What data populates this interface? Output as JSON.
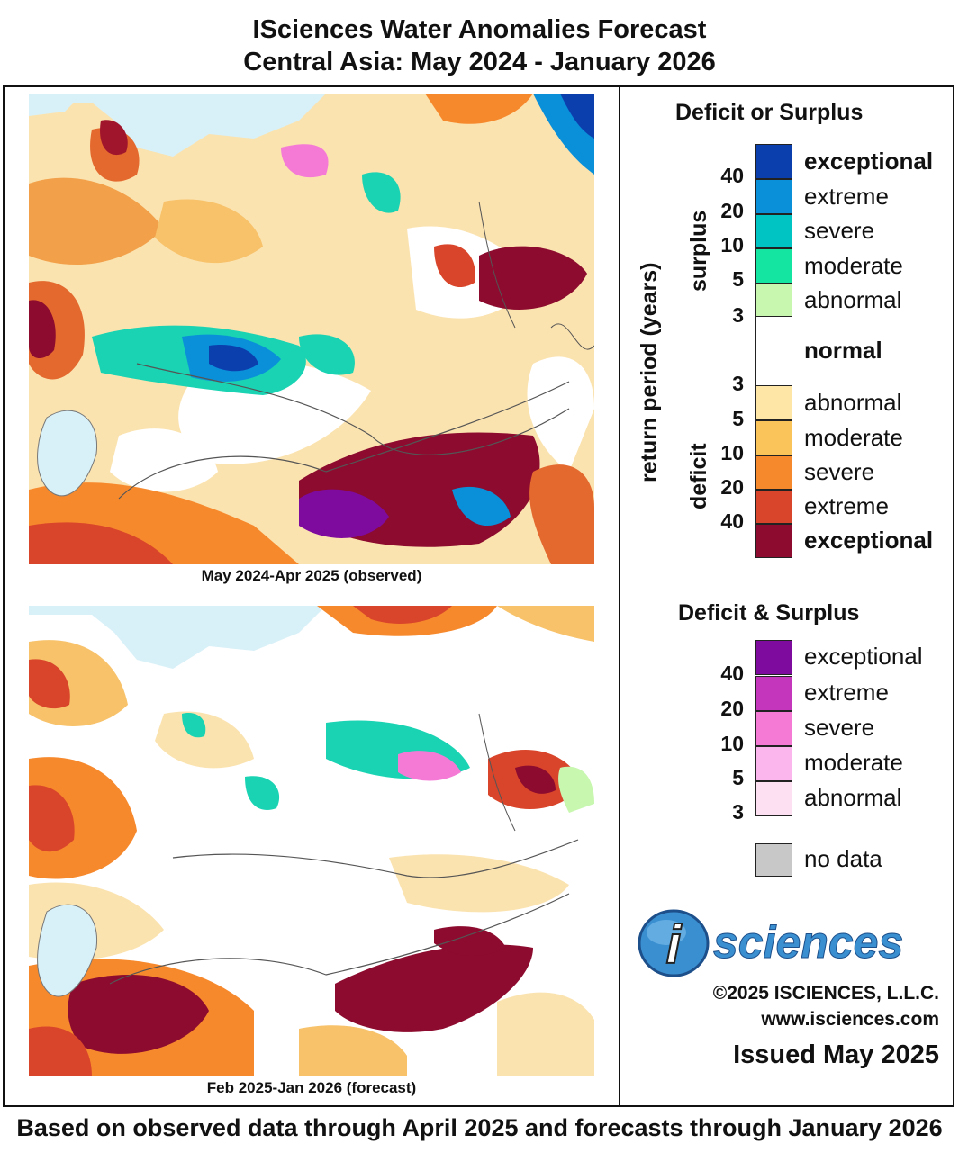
{
  "header": {
    "title_line1": "ISciences Water Anomalies Forecast",
    "title_line2": "Central Asia: May 2024 - January 2026"
  },
  "maps": {
    "observed_caption": "May 2024-Apr 2025 (observed)",
    "forecast_caption": "Feb 2025-Jan 2026 (forecast)"
  },
  "legend": {
    "deficit_or_surplus": {
      "title": "Deficit or Surplus",
      "axis_label": "return period (years)",
      "surplus_label": "surplus",
      "deficit_label": "deficit",
      "categories": [
        {
          "label": "exceptional",
          "color": "#0c3fae"
        },
        {
          "label": "extreme",
          "color": "#0a8fd9"
        },
        {
          "label": "severe",
          "color": "#00c4c4"
        },
        {
          "label": "moderate",
          "color": "#14e5a1"
        },
        {
          "label": "abnormal",
          "color": "#c8f7b0"
        },
        {
          "label": "normal",
          "color": "#ffffff"
        },
        {
          "label": "abnormal",
          "color": "#fde6a6"
        },
        {
          "label": "moderate",
          "color": "#fbc45a"
        },
        {
          "label": "severe",
          "color": "#f7892d"
        },
        {
          "label": "extreme",
          "color": "#d9452a"
        },
        {
          "label": "exceptional",
          "color": "#8c0b2e"
        }
      ],
      "surplus_numbers": [
        "40",
        "20",
        "10",
        "5",
        "3"
      ],
      "deficit_numbers": [
        "3",
        "5",
        "10",
        "20",
        "40"
      ]
    },
    "deficit_and_surplus": {
      "title": "Deficit & Surplus",
      "categories": [
        {
          "label": "exceptional",
          "color": "#7e0a9e"
        },
        {
          "label": "extreme",
          "color": "#c437bd"
        },
        {
          "label": "severe",
          "color": "#f47ad6"
        },
        {
          "label": "moderate",
          "color": "#fbb6ee"
        },
        {
          "label": "abnormal",
          "color": "#fde0f2"
        }
      ],
      "numbers": [
        "40",
        "20",
        "10",
        "5",
        "3"
      ]
    },
    "no_data": {
      "label": "no data",
      "color": "#c8c8c8"
    }
  },
  "branding": {
    "logo_letter": "i",
    "logo_text": "sciences",
    "copyright": "©2025 ISCIENCES, L.L.C.",
    "website": "www.isciences.com",
    "issued": "Issued May 2025"
  },
  "footer": "Based on observed data through April 2025 and forecasts through January 2026"
}
